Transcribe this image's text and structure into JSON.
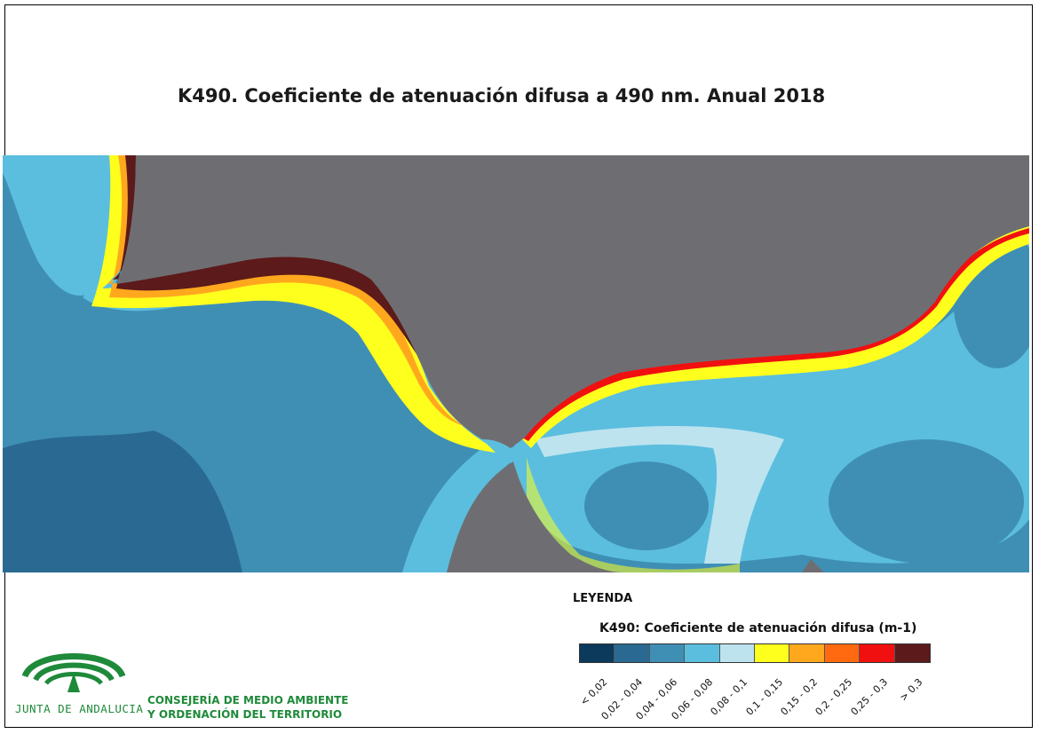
{
  "title": "K490. Coeficiente de atenuación difusa a 490 nm. Anual 2018",
  "legend": {
    "heading": "LEYENDA",
    "subtitle": "K490: Coeficiente de atenuación difusa (m-1)",
    "classes": [
      {
        "label": "< 0,02",
        "color": "#0b3a5c"
      },
      {
        "label": "0,02 - 0,04",
        "color": "#2a6a92"
      },
      {
        "label": "0,04 - 0,06",
        "color": "#3f8fb5"
      },
      {
        "label": "0,06 - 0,08",
        "color": "#5bbede"
      },
      {
        "label": "0,08 - 0,1",
        "color": "#bde3ef"
      },
      {
        "label": "0,1 - 0,15",
        "color": "#ffff1e"
      },
      {
        "label": "0,15 - 0,2",
        "color": "#ffa81e"
      },
      {
        "label": "0,2 - 0,25",
        "color": "#ff6a10"
      },
      {
        "label": "0,25 - 0,3",
        "color": "#f01010"
      },
      {
        "label": "> 0,3",
        "color": "#5c1a1a"
      }
    ]
  },
  "organization": {
    "logo_text": "JUNTA DE ANDALUCIA",
    "department_line1": "CONSEJERÍA DE MEDIO AMBIENTE",
    "department_line2": "Y ORDENACIÓN DEL TERRITORIO"
  },
  "colors": {
    "land": "#6e6e72",
    "logo_green": "#1f8a3a"
  }
}
